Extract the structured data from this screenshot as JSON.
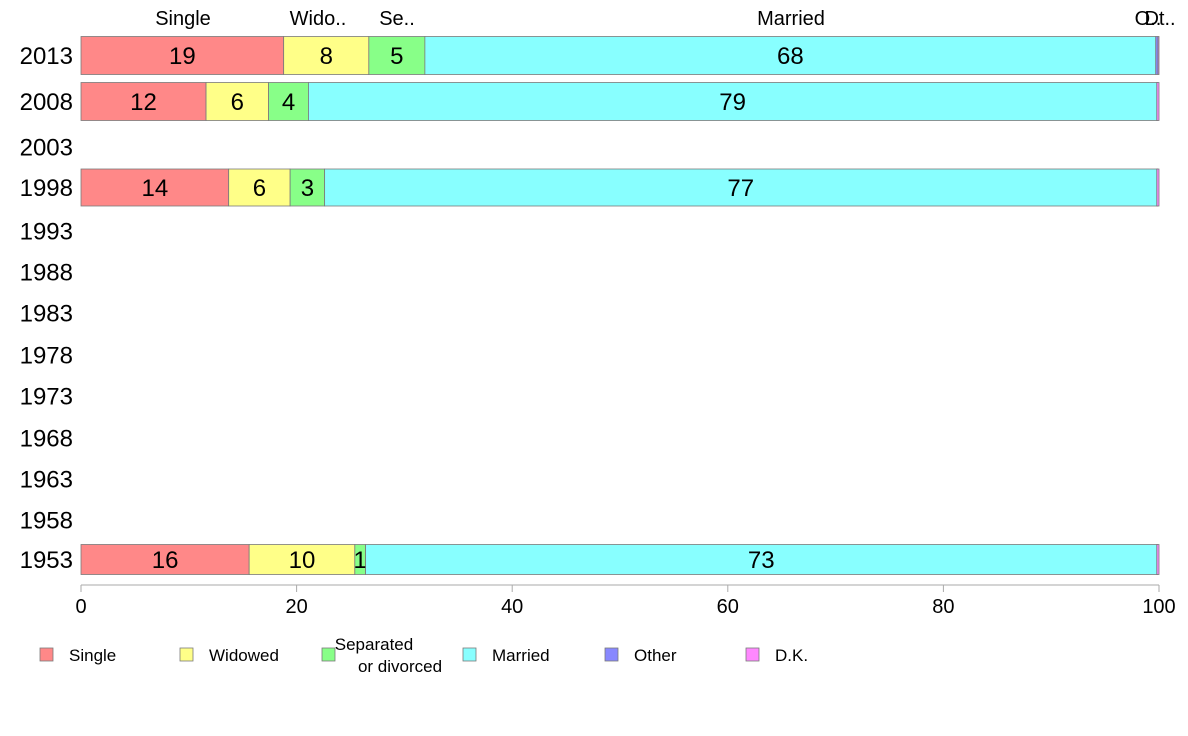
{
  "chart_data": {
    "type": "bar",
    "orientation": "horizontal",
    "stacked": true,
    "title": "",
    "xlabel": "",
    "ylabel": "",
    "xlim": [
      0,
      100
    ],
    "x_ticks": [
      "0",
      "20",
      "40",
      "60",
      "80",
      "100"
    ],
    "categories": [
      "2013",
      "2008",
      "2003",
      "1998",
      "1993",
      "1988",
      "1983",
      "1978",
      "1973",
      "1968",
      "1963",
      "1958",
      "1953"
    ],
    "top_labels": [
      "Single",
      "Wido..",
      "Se..",
      "Married",
      "O..",
      "Dt.."
    ],
    "series": [
      {
        "name": "Single",
        "legend_label": [
          "Single"
        ],
        "color": "#FF8888",
        "values": [
          18.8,
          11.6,
          null,
          13.7,
          null,
          null,
          null,
          null,
          null,
          null,
          null,
          null,
          15.6
        ],
        "labels": [
          "19",
          "12",
          "",
          "14",
          "",
          "",
          "",
          "",
          "",
          "",
          "",
          "",
          "16"
        ]
      },
      {
        "name": "Widowed",
        "legend_label": [
          "Widowed"
        ],
        "color": "#FFFF88",
        "values": [
          7.9,
          5.8,
          null,
          5.7,
          null,
          null,
          null,
          null,
          null,
          null,
          null,
          null,
          9.8
        ],
        "labels": [
          "8",
          "6",
          "",
          "6",
          "",
          "",
          "",
          "",
          "",
          "",
          "",
          "",
          "10"
        ]
      },
      {
        "name": "Separated or divorced",
        "legend_label": [
          "Separated",
          "or divorced"
        ],
        "color": "#88FF88",
        "values": [
          5.2,
          3.7,
          null,
          3.2,
          null,
          null,
          null,
          null,
          null,
          null,
          null,
          null,
          1.0
        ],
        "labels": [
          "5",
          "4",
          "",
          "3",
          "",
          "",
          "",
          "",
          "",
          "",
          "",
          "",
          "1"
        ]
      },
      {
        "name": "Married",
        "legend_label": [
          "Married"
        ],
        "color": "#88FFFF",
        "values": [
          67.8,
          78.7,
          null,
          77.2,
          null,
          null,
          null,
          null,
          null,
          null,
          null,
          null,
          73.4
        ],
        "labels": [
          "68",
          "79",
          "",
          "77",
          "",
          "",
          "",
          "",
          "",
          "",
          "",
          "",
          "73"
        ]
      },
      {
        "name": "Other",
        "legend_label": [
          "Other"
        ],
        "color": "#8888FF",
        "values": [
          0.2,
          0.0,
          null,
          0.0,
          null,
          null,
          null,
          null,
          null,
          null,
          null,
          null,
          0.0
        ],
        "labels": [
          "",
          "",
          "",
          "",
          "",
          "",
          "",
          "",
          "",
          "",
          "",
          "",
          ""
        ]
      },
      {
        "name": "D.K.",
        "legend_label": [
          "D.K."
        ],
        "color": "#FF88FF",
        "values": [
          0.1,
          0.2,
          null,
          0.2,
          null,
          null,
          null,
          null,
          null,
          null,
          null,
          null,
          0.2
        ],
        "labels": [
          "",
          "",
          "",
          "",
          "",
          "",
          "",
          "",
          "",
          "",
          "",
          "",
          ""
        ]
      }
    ],
    "legend_position": "bottom"
  }
}
